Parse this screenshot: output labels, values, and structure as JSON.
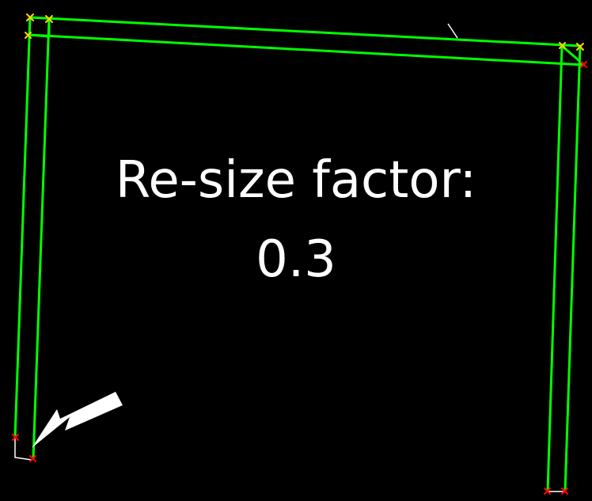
{
  "caption": {
    "line1": "Re-size factor:",
    "line2": "0.3"
  },
  "colors": {
    "background": "#000000",
    "outline": "#00ff00",
    "inner_marker": "#ffd400",
    "outer_marker": "#ff0000",
    "accent": "#ffffff",
    "arrow": "#ffffff"
  },
  "icons": {
    "arrow": "arrow-pointer-icon",
    "vertex": "x-mark-icon"
  }
}
